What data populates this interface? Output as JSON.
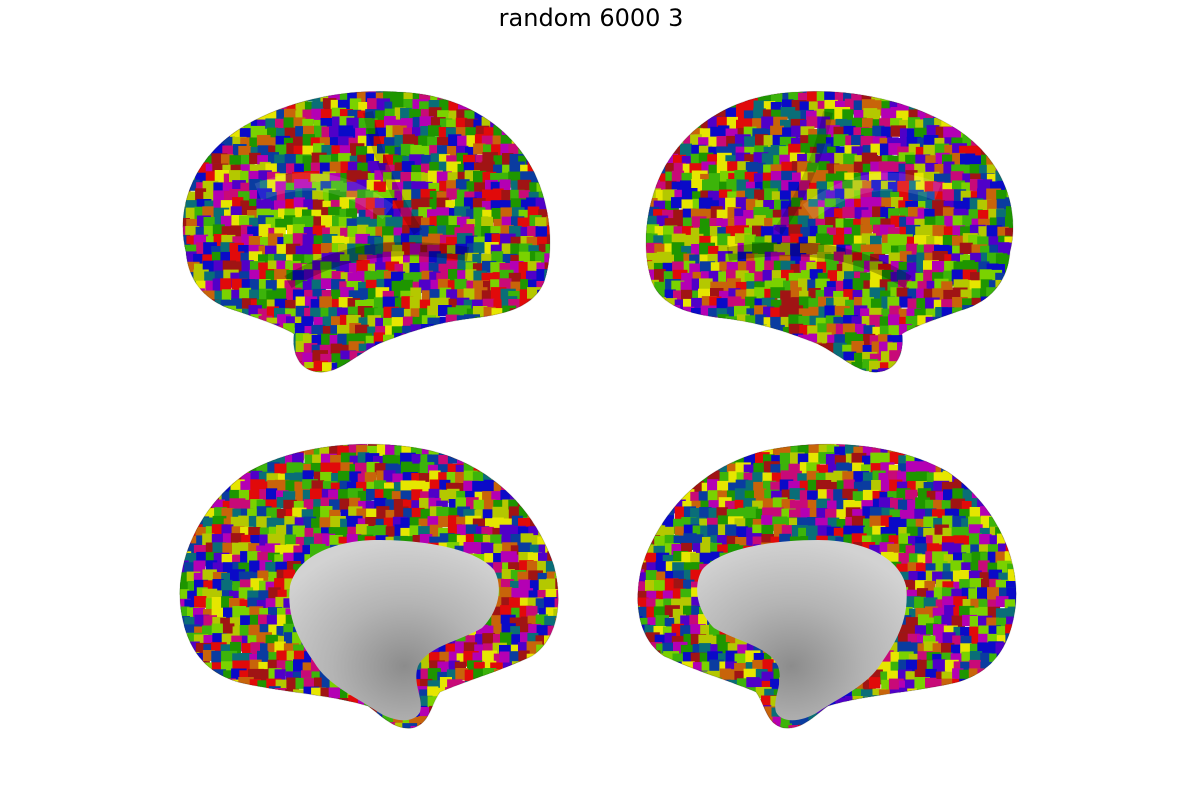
{
  "figure": {
    "title": "random 6000 3"
  },
  "palette": [
    "#0a0ac8",
    "#e10a0a",
    "#3cb40a",
    "#b4c800",
    "#5000c8",
    "#0a6e78",
    "#c8640a",
    "#7ad200",
    "#c80a78",
    "#1e9600",
    "#b400b4",
    "#e6e600",
    "#0a3ca0",
    "#a01414"
  ],
  "medial_wall_color": "#b4b4b4",
  "panels": [
    {
      "name": "left-lateral",
      "view": "lateral",
      "hemisphere": "left"
    },
    {
      "name": "right-lateral",
      "view": "lateral",
      "hemisphere": "right"
    },
    {
      "name": "left-medial",
      "view": "medial",
      "hemisphere": "left"
    },
    {
      "name": "right-medial",
      "view": "medial",
      "hemisphere": "right"
    }
  ]
}
